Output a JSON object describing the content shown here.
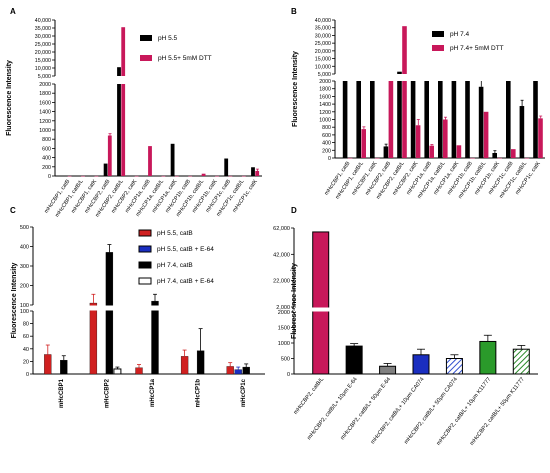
{
  "colors": {
    "black": "#000000",
    "crimson": "#c8185a",
    "red": "#d02020",
    "blue": "#1a2ec0",
    "gray": "#808080",
    "white": "#ffffff",
    "hatch_blue": "#3050d0"
  },
  "chart_data": [
    {
      "panel_label": "A",
      "type": "bar",
      "ylabel": "Fluorescence Intensity",
      "y_axis_break": {
        "lower_range": [
          0,
          2000
        ],
        "upper_range": [
          5000,
          40000
        ]
      },
      "lower_ticks": [
        "0",
        "200",
        "400",
        "600",
        "800",
        "1000",
        "1200",
        "1400",
        "1600",
        "1800",
        "2000"
      ],
      "upper_ticks": [
        "5,000",
        "10,000",
        "15,000",
        "20,000",
        "25,000",
        "30,000",
        "35,000",
        "40,000"
      ],
      "categories": [
        "mHcCBP1, catB",
        "mHcCBP1, catB/L",
        "mHcCBP1, catK",
        "mHcCBP2, catB",
        "mHcCBP2, catB/L",
        "mHcCBP2, catK",
        "mHcCP1a, catB",
        "mHcCP1a, catB/L",
        "mHcCP1a, catK",
        "mHcCP1b, catB",
        "mHcCP1b, catB/L",
        "mHcCP1b, catK",
        "mHcCP1c, catB",
        "mHcCP1c, catB/L",
        "mHcCP1c, catK"
      ],
      "series": [
        {
          "name": "pH 5.5",
          "values": [
            2,
            2,
            2,
            270,
            10500,
            2,
            2,
            2,
            700,
            2,
            2,
            2,
            380,
            2,
            190
          ]
        },
        {
          "name": "pH 5.5+ 5mM DTT",
          "values": [
            2,
            2,
            2,
            880,
            35500,
            2,
            650,
            2,
            2,
            2,
            50,
            2,
            2,
            2,
            110
          ],
          "errors": [
            0,
            0,
            0,
            40,
            0,
            0,
            0,
            0,
            0,
            0,
            0,
            0,
            0,
            0,
            40
          ]
        }
      ],
      "legend_position": "top-right"
    },
    {
      "panel_label": "B",
      "type": "bar",
      "ylabel": "Fluorescence Intensity",
      "y_axis_break": {
        "lower_range": [
          0,
          2000
        ],
        "upper_range": [
          5000,
          40000
        ]
      },
      "lower_ticks": [
        "0",
        "200",
        "400",
        "600",
        "800",
        "1000",
        "1200",
        "1400",
        "1600",
        "1800",
        "2000"
      ],
      "upper_ticks": [
        "5,000",
        "10,000",
        "15,000",
        "20,000",
        "25,000",
        "30,000",
        "35,000",
        "40,000"
      ],
      "categories": [
        "mHcCBP1, catB",
        "mHcCBP1, catB/L",
        "mHcCBP1, catK",
        "mHcCBP2, catB",
        "mHcCBP2, catB/L",
        "mHcCBP2, catK",
        "mHcCP1a, catB",
        "mHcCP1a, catB/L",
        "mHcCP1a, catK",
        "mHcCP1b, catB",
        "mHcCP1b, catB/L",
        "mHcCP1b, catK",
        "mHcCP1c, catB",
        "mHcCP1c, catB/L",
        "mHcCP1c, catK"
      ],
      "series": [
        {
          "name": "pH 7.4",
          "values": [
            2400,
            2400,
            2400,
            300,
            6500,
            2400,
            2400,
            2400,
            2400,
            2400,
            1850,
            130,
            2400,
            1350,
            2400
          ],
          "errors": [
            0,
            0,
            0,
            60,
            0,
            0,
            0,
            0,
            0,
            0,
            200,
            60,
            0,
            150,
            0
          ]
        },
        {
          "name": "pH 7.4+ 5mM DTT",
          "values": [
            2,
            750,
            2,
            2400,
            36000,
            850,
            320,
            1000,
            330,
            2,
            1200,
            2,
            230,
            2,
            1030
          ],
          "errors": [
            0,
            60,
            0,
            0,
            0,
            150,
            30,
            60,
            0,
            0,
            0,
            0,
            0,
            0,
            60
          ]
        }
      ],
      "legend_position": "top-right"
    },
    {
      "panel_label": "C",
      "type": "bar",
      "ylabel": "Fluorescence Intensity",
      "y_axis_break": {
        "lower_range": [
          0,
          100
        ],
        "upper_range": [
          100,
          500
        ]
      },
      "lower_ticks": [
        "0",
        "20",
        "40",
        "60",
        "80",
        "100"
      ],
      "upper_ticks": [
        "100",
        "200",
        "300",
        "400",
        "500"
      ],
      "categories": [
        "mHcCBP1",
        "mHcCBP2",
        "mHcCP1a",
        "mHcCP1b",
        "mHcCP1c"
      ],
      "series": [
        {
          "name": "pH 5.5, catB",
          "values": [
            31,
            110,
            10,
            28,
            12
          ],
          "errors": [
            15,
            45,
            5,
            10,
            6
          ]
        },
        {
          "name": "pH 5.5, catB + E-64",
          "values": [
            0,
            0,
            0,
            0,
            7
          ],
          "errors": [
            0,
            0,
            0,
            0,
            4
          ]
        },
        {
          "name": "pH 7.4, catB",
          "values": [
            22,
            370,
            120,
            37,
            11
          ],
          "errors": [
            7,
            40,
            35,
            35,
            5
          ]
        },
        {
          "name": "pH 7.4, catB + E-64",
          "values": [
            0,
            8,
            0,
            0,
            0
          ],
          "errors": [
            0,
            3,
            0,
            0,
            0
          ]
        }
      ],
      "legend_position": "top-right"
    },
    {
      "panel_label": "D",
      "type": "bar",
      "ylabel": "Fluorescence Intensity",
      "y_axis_break": {
        "lower_range": [
          0,
          2000
        ],
        "upper_range": [
          2000,
          62000
        ]
      },
      "lower_ticks": [
        "0",
        "500",
        "1000",
        "1500",
        "2000"
      ],
      "upper_ticks": [
        "2,000",
        "22,000",
        "42,000",
        "62,000"
      ],
      "categories": [
        "mHcCBP2, catB/L",
        "mHcCBP2, catB/L+ 10μm E-64",
        "mHcCBP2, catB/L+ 50μm E-64",
        "mHcCBP2, catB/L+ 10μm CA074",
        "mHcCBP2, catB/L+ 50μm CA074",
        "mHcCBP2, catB/L+ 10μm K11777",
        "mHcCBP2, catB/L+ 50μm K11777"
      ],
      "values": [
        59000,
        900,
        250,
        620,
        500,
        1050,
        800
      ],
      "errors": [
        0,
        80,
        90,
        180,
        120,
        200,
        120
      ],
      "bar_styles": [
        "crimson",
        "black",
        "gray",
        "blue",
        "hatch-blue",
        "green",
        "hatch-green"
      ]
    }
  ]
}
